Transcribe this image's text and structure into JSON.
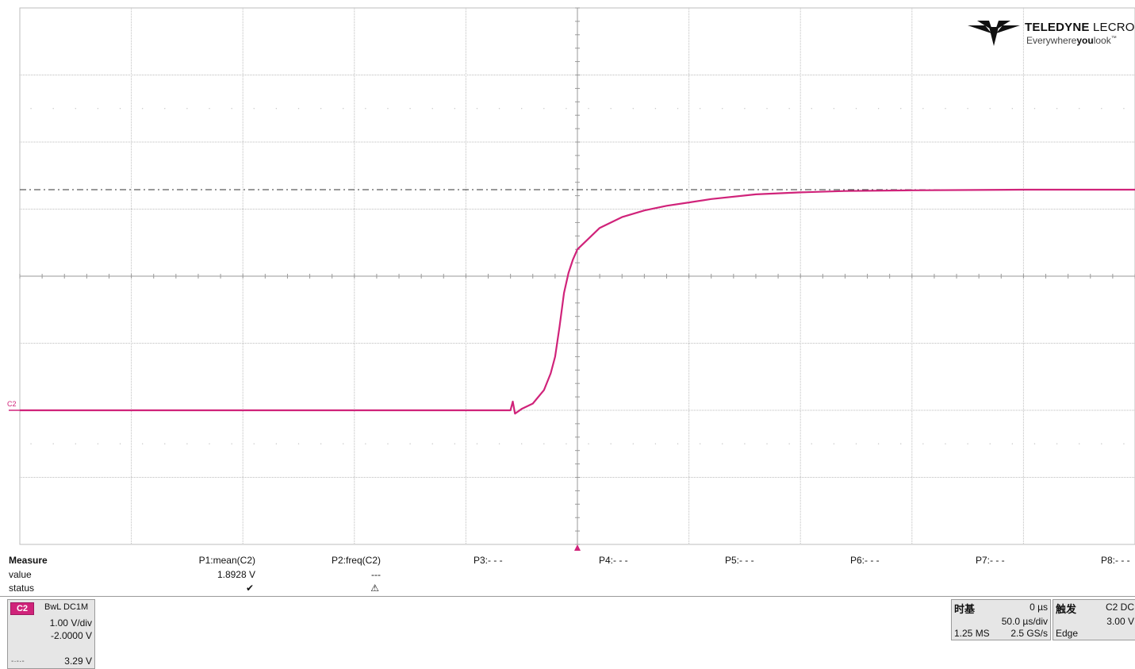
{
  "channel_marker": "C2",
  "logo": {
    "brand_bold": "TELEDYNE",
    "brand_light": " LECROY",
    "tagline_pre": "Everywhere",
    "tagline_bold": "you",
    "tagline_post": "look",
    "tagline_tm": "™"
  },
  "colors": {
    "trace": "#d0237a",
    "grid": "#bdbdbd",
    "reference_line": "#333333",
    "background": "#ffffff"
  },
  "measure": {
    "title": "Measure",
    "value_label": "value",
    "status_label": "status",
    "params": [
      {
        "header": "P1:mean(C2)",
        "value": "1.8928 V",
        "status": "✔"
      },
      {
        "header": "P2:freq(C2)",
        "value": "---",
        "status": "⚠"
      },
      {
        "header": "P3:- - -"
      },
      {
        "header": "P4:- - -"
      },
      {
        "header": "P5:- - -"
      },
      {
        "header": "P6:- - -"
      },
      {
        "header": "P7:- - -"
      },
      {
        "header": "P8:- - -"
      }
    ]
  },
  "channel": {
    "badge": "C2",
    "coupling": "BwL DC1M",
    "volts_per_div": "1.00 V/div",
    "offset": "-2.0000 V",
    "line_style": "-·-·-",
    "level": "3.29 V"
  },
  "timebase": {
    "title": "时基",
    "delay": "0 µs",
    "time_per_div": "50.0 µs/div",
    "points": "1.25 MS",
    "sample_rate": "2.5 GS/s"
  },
  "trigger": {
    "title": "触发",
    "source": "C2 DC",
    "level": "3.00 V",
    "type": "Edge"
  },
  "chart_data": {
    "type": "line",
    "x_unit": "µs",
    "y_unit": "V",
    "xlim": [
      -250,
      250
    ],
    "ylim": [
      -2,
      6
    ],
    "grid": true,
    "reference_level": 3.29,
    "series": [
      {
        "x": [
          -250,
          -150,
          -50,
          -30,
          -29,
          -28,
          -25,
          -20,
          -15,
          -12,
          -10,
          -8,
          -6,
          -4,
          -2,
          0,
          10,
          20,
          30,
          40,
          50,
          60,
          80,
          100,
          120,
          150,
          200,
          250
        ],
        "y": [
          0.0,
          0.0,
          0.0,
          0.0,
          0.13,
          -0.05,
          0.02,
          0.1,
          0.3,
          0.55,
          0.8,
          1.25,
          1.75,
          2.05,
          2.25,
          2.4,
          2.72,
          2.88,
          2.98,
          3.05,
          3.1,
          3.15,
          3.22,
          3.25,
          3.27,
          3.28,
          3.29,
          3.29
        ]
      }
    ]
  }
}
